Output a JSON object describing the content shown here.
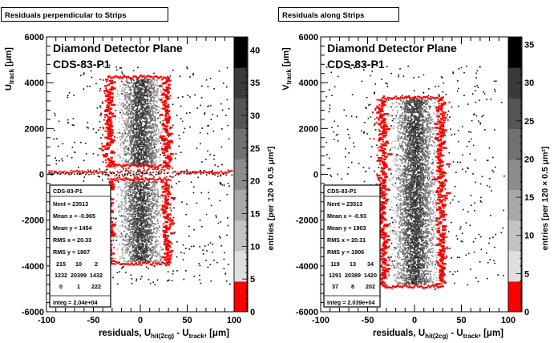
{
  "chart_data": [
    {
      "type": "heatmap",
      "pad_title": "Residuals perpendicular to Strips",
      "title_line1": "Diamond Detector Plane",
      "title_line2": "CDS-83-P1",
      "xlabel_main": "residuals, U",
      "xlabel_sub1": "hit(2cg)",
      "xlabel_mid": " - U",
      "xlabel_sub2": "track",
      "xlabel_end": ",  [μm]",
      "ylabel_main": "U",
      "ylabel_sub": "track",
      "ylabel_unit": " [μm]",
      "zlabel": "entries [per 120 × 0.5 μm²]",
      "xlim": [
        -100,
        100
      ],
      "ylim": [
        -6000,
        6000
      ],
      "zlim": [
        0,
        42
      ],
      "x_ticks": [
        "-100",
        "-50",
        "0",
        "50",
        "100"
      ],
      "y_ticks": [
        "-6000",
        "-4000",
        "-2000",
        "0",
        "2000",
        "4000",
        "6000"
      ],
      "z_ticks": [
        "0",
        "5",
        "10",
        "15",
        "20",
        "25",
        "30",
        "35",
        "40"
      ],
      "stats": {
        "name": "CDS-83-P1",
        "entries": "Nent = 23513",
        "mean_x": "Mean x = -0.965",
        "mean_y": "Mean y =   1454",
        "rms_x": "RMS x =  20.33",
        "rms_y": "RMS y =   1867",
        "grid": [
          [
            "215",
            "10",
            "2"
          ],
          [
            "1232",
            "20399",
            "1432"
          ],
          [
            "0",
            "1",
            "222"
          ]
        ],
        "integ": "Integ = 2.04e+04"
      }
    },
    {
      "type": "heatmap",
      "pad_title": "Residuals along Strips",
      "title_line1": "Diamond Detector Plane",
      "title_line2": "CDS-83-P1",
      "xlabel_main": "residuals, U",
      "xlabel_sub1": "hit(2cg)",
      "xlabel_mid": " - U",
      "xlabel_sub2": "track",
      "xlabel_end": ",  [μm]",
      "ylabel_main": "V",
      "ylabel_sub": "track",
      "ylabel_unit": " [μm]",
      "zlabel": "entries [per 120 × 0.5 μm²]",
      "xlim": [
        -100,
        100
      ],
      "ylim": [
        -6000,
        6000
      ],
      "zlim": [
        0,
        36
      ],
      "x_ticks": [
        "-100",
        "-50",
        "0",
        "50",
        "100"
      ],
      "y_ticks": [
        "-6000",
        "-4000",
        "-2000",
        "0",
        "2000",
        "4000",
        "6000"
      ],
      "z_ticks": [
        "0",
        "5",
        "10",
        "15",
        "20",
        "25",
        "30",
        "35"
      ],
      "stats": {
        "name": "CDS-83-P1",
        "entries": "Nent = 23513",
        "mean_x": "Mean x = -0.93",
        "mean_y": "Mean y =  1903",
        "rms_x": "RMS x =  20.31",
        "rms_y": "RMS y =   1906",
        "grid": [
          [
            "119",
            "13",
            "34"
          ],
          [
            "1291",
            "20389",
            "1420"
          ],
          [
            "37",
            "8",
            "202"
          ]
        ],
        "integ": "Integ = 2.039e+04"
      }
    }
  ]
}
